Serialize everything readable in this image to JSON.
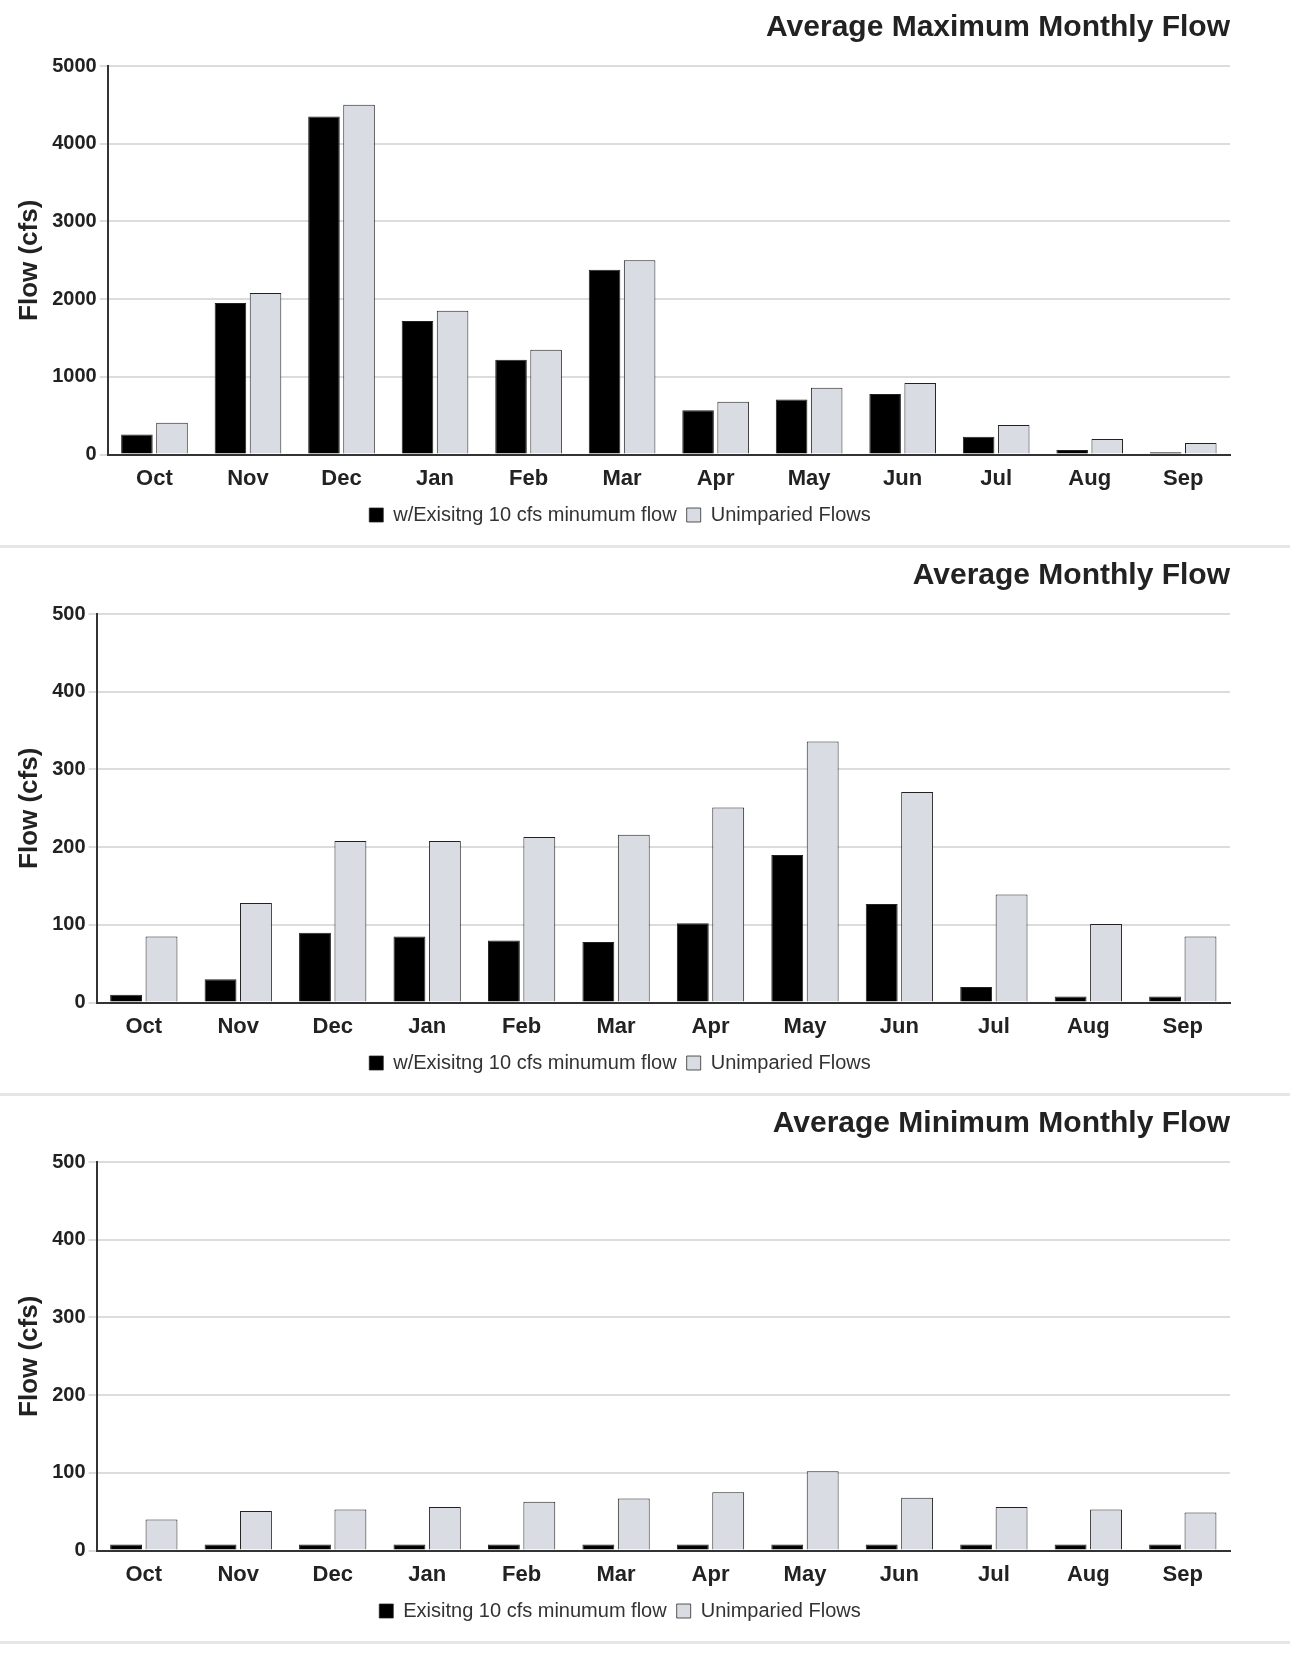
{
  "chart_data": [
    {
      "type": "bar",
      "title": "Average Maximum Monthly Flow",
      "ylabel": "Flow (cfs)",
      "categories": [
        "Oct",
        "Nov",
        "Dec",
        "Jan",
        "Feb",
        "Mar",
        "Apr",
        "May",
        "Jun",
        "Jul",
        "Aug",
        "Sep"
      ],
      "series": [
        {
          "name": "w/Exisitng 10 cfs minumum flow",
          "color": "#000000",
          "values": [
            260,
            1950,
            4350,
            1720,
            1220,
            2380,
            570,
            710,
            780,
            230,
            60,
            30
          ]
        },
        {
          "name": "Unimparied Flows",
          "color": "#d9dde3",
          "values": [
            410,
            2080,
            4500,
            1850,
            1350,
            2500,
            680,
            860,
            920,
            380,
            200,
            150
          ]
        }
      ],
      "ylim": [
        0,
        5000
      ],
      "yticks": [
        0,
        1000,
        2000,
        3000,
        4000,
        5000
      ],
      "grid": "y",
      "legend": "bottom"
    },
    {
      "type": "bar",
      "title": "Average Monthly Flow",
      "ylabel": "Flow (cfs)",
      "categories": [
        "Oct",
        "Nov",
        "Dec",
        "Jan",
        "Feb",
        "Mar",
        "Apr",
        "May",
        "Jun",
        "Jul",
        "Aug",
        "Sep"
      ],
      "series": [
        {
          "name": "w/Exisitng 10 cfs minumum flow",
          "color": "#000000",
          "values": [
            10,
            30,
            90,
            85,
            80,
            78,
            102,
            190,
            127,
            20,
            8,
            8
          ]
        },
        {
          "name": "Unimparied Flows",
          "color": "#d9dde3",
          "values": [
            85,
            128,
            208,
            208,
            213,
            216,
            251,
            336,
            271,
            139,
            101,
            85
          ]
        }
      ],
      "ylim": [
        0,
        500
      ],
      "yticks": [
        0,
        100,
        200,
        300,
        400,
        500
      ],
      "grid": "y",
      "legend": "bottom"
    },
    {
      "type": "bar",
      "title": "Average Minimum Monthly Flow",
      "ylabel": "Flow (cfs)",
      "categories": [
        "Oct",
        "Nov",
        "Dec",
        "Jan",
        "Feb",
        "Mar",
        "Apr",
        "May",
        "Jun",
        "Jul",
        "Aug",
        "Sep"
      ],
      "series": [
        {
          "name": "Exisitng 10 cfs minumum flow",
          "color": "#000000",
          "values": [
            8,
            8,
            8,
            8,
            8,
            8,
            8,
            8,
            8,
            8,
            8,
            8
          ]
        },
        {
          "name": "Unimparied Flows",
          "color": "#d9dde3",
          "values": [
            40,
            51,
            53,
            56,
            63,
            67,
            75,
            102,
            68,
            56,
            53,
            49
          ]
        }
      ],
      "ylim": [
        0,
        500
      ],
      "yticks": [
        0,
        100,
        200,
        300,
        400,
        500
      ],
      "grid": "y",
      "legend": "bottom"
    }
  ]
}
